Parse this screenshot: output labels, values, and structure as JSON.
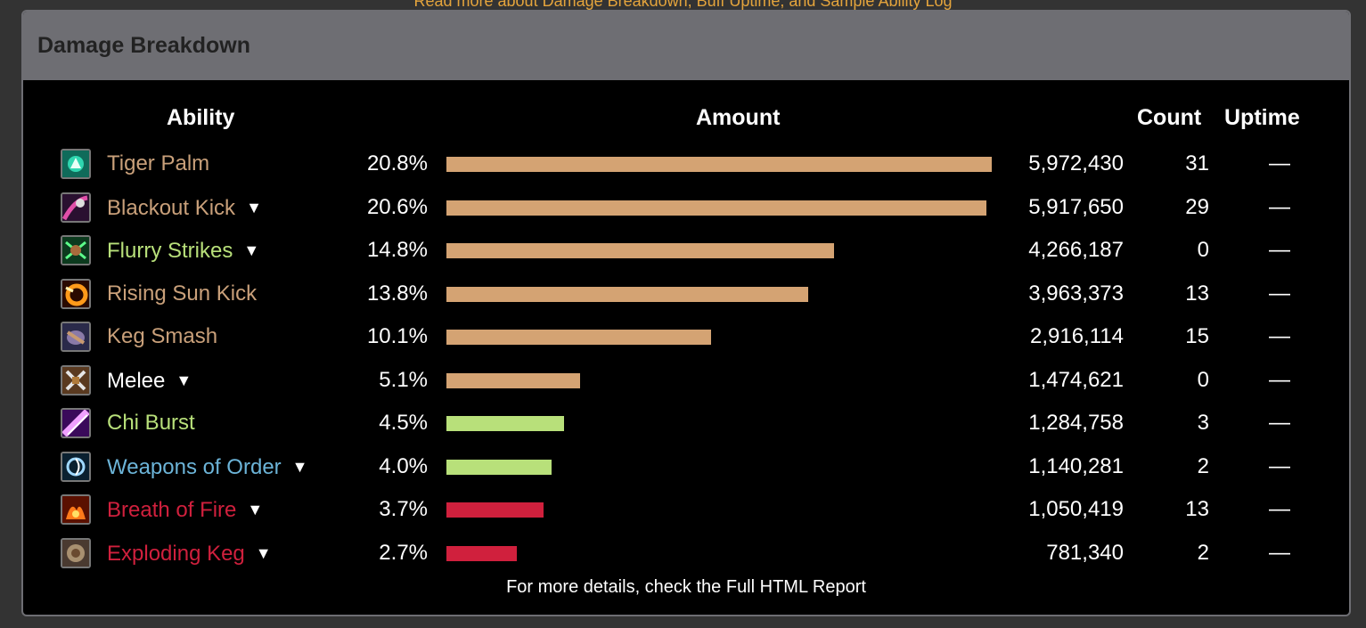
{
  "top_link": "Read more about Damage Breakdown, Buff Uptime, and Sample Ability Log",
  "panel": {
    "title": "Damage Breakdown"
  },
  "headers": {
    "ability": "Ability",
    "amount": "Amount",
    "count": "Count",
    "uptime": "Uptime"
  },
  "footer": "For more details, check the Full HTML Report",
  "colors": {
    "physical": "#d4a373",
    "nature": "#b8e07a",
    "fire": "#d0203d",
    "arcane": "#6cb4d8",
    "melee_text": "#ffffff"
  },
  "rows": [
    {
      "icon": "tiger-palm-icon",
      "name": "Tiger Palm",
      "color": "#c9a07a",
      "caret": false,
      "pct": "20.8%",
      "pct_value": 20.8,
      "bar_color": "#d4a373",
      "amount": "5,972,430",
      "count": "31",
      "uptime": "—"
    },
    {
      "icon": "blackout-kick-icon",
      "name": "Blackout Kick",
      "color": "#c9a07a",
      "caret": true,
      "pct": "20.6%",
      "pct_value": 20.6,
      "bar_color": "#d4a373",
      "amount": "5,917,650",
      "count": "29",
      "uptime": "—"
    },
    {
      "icon": "flurry-strikes-icon",
      "name": "Flurry Strikes",
      "color": "#b8e07a",
      "caret": true,
      "pct": "14.8%",
      "pct_value": 14.8,
      "bar_color": "#d4a373",
      "amount": "4,266,187",
      "count": "0",
      "uptime": "—"
    },
    {
      "icon": "rising-sun-kick-icon",
      "name": "Rising Sun Kick",
      "color": "#c9a07a",
      "caret": false,
      "pct": "13.8%",
      "pct_value": 13.8,
      "bar_color": "#d4a373",
      "amount": "3,963,373",
      "count": "13",
      "uptime": "—"
    },
    {
      "icon": "keg-smash-icon",
      "name": "Keg Smash",
      "color": "#c9a07a",
      "caret": false,
      "pct": "10.1%",
      "pct_value": 10.1,
      "bar_color": "#d4a373",
      "amount": "2,916,114",
      "count": "15",
      "uptime": "—"
    },
    {
      "icon": "melee-icon",
      "name": "Melee",
      "color": "#ffffff",
      "caret": true,
      "pct": "5.1%",
      "pct_value": 5.1,
      "bar_color": "#d4a373",
      "amount": "1,474,621",
      "count": "0",
      "uptime": "—"
    },
    {
      "icon": "chi-burst-icon",
      "name": "Chi Burst",
      "color": "#b8e07a",
      "caret": false,
      "pct": "4.5%",
      "pct_value": 4.5,
      "bar_color": "#b8e07a",
      "amount": "1,284,758",
      "count": "3",
      "uptime": "—"
    },
    {
      "icon": "weapons-of-order-icon",
      "name": "Weapons of Order",
      "color": "#6cb4d8",
      "caret": true,
      "pct": "4.0%",
      "pct_value": 4.0,
      "bar_color": "#b8e07a",
      "amount": "1,140,281",
      "count": "2",
      "uptime": "—"
    },
    {
      "icon": "breath-of-fire-icon",
      "name": "Breath of Fire",
      "color": "#d0203d",
      "caret": true,
      "pct": "3.7%",
      "pct_value": 3.7,
      "bar_color": "#d0203d",
      "amount": "1,050,419",
      "count": "13",
      "uptime": "—"
    },
    {
      "icon": "exploding-keg-icon",
      "name": "Exploding Keg",
      "color": "#d0203d",
      "caret": true,
      "pct": "2.7%",
      "pct_value": 2.7,
      "bar_color": "#d0203d",
      "amount": "781,340",
      "count": "2",
      "uptime": "—"
    }
  ],
  "chart_data": {
    "type": "bar",
    "categories": [
      "Tiger Palm",
      "Blackout Kick",
      "Flurry Strikes",
      "Rising Sun Kick",
      "Keg Smash",
      "Melee",
      "Chi Burst",
      "Weapons of Order",
      "Breath of Fire",
      "Exploding Keg"
    ],
    "values": [
      20.8,
      20.6,
      14.8,
      13.8,
      10.1,
      5.1,
      4.5,
      4.0,
      3.7,
      2.7
    ],
    "title": "",
    "xlabel": "Amount",
    "ylabel": "Ability"
  }
}
